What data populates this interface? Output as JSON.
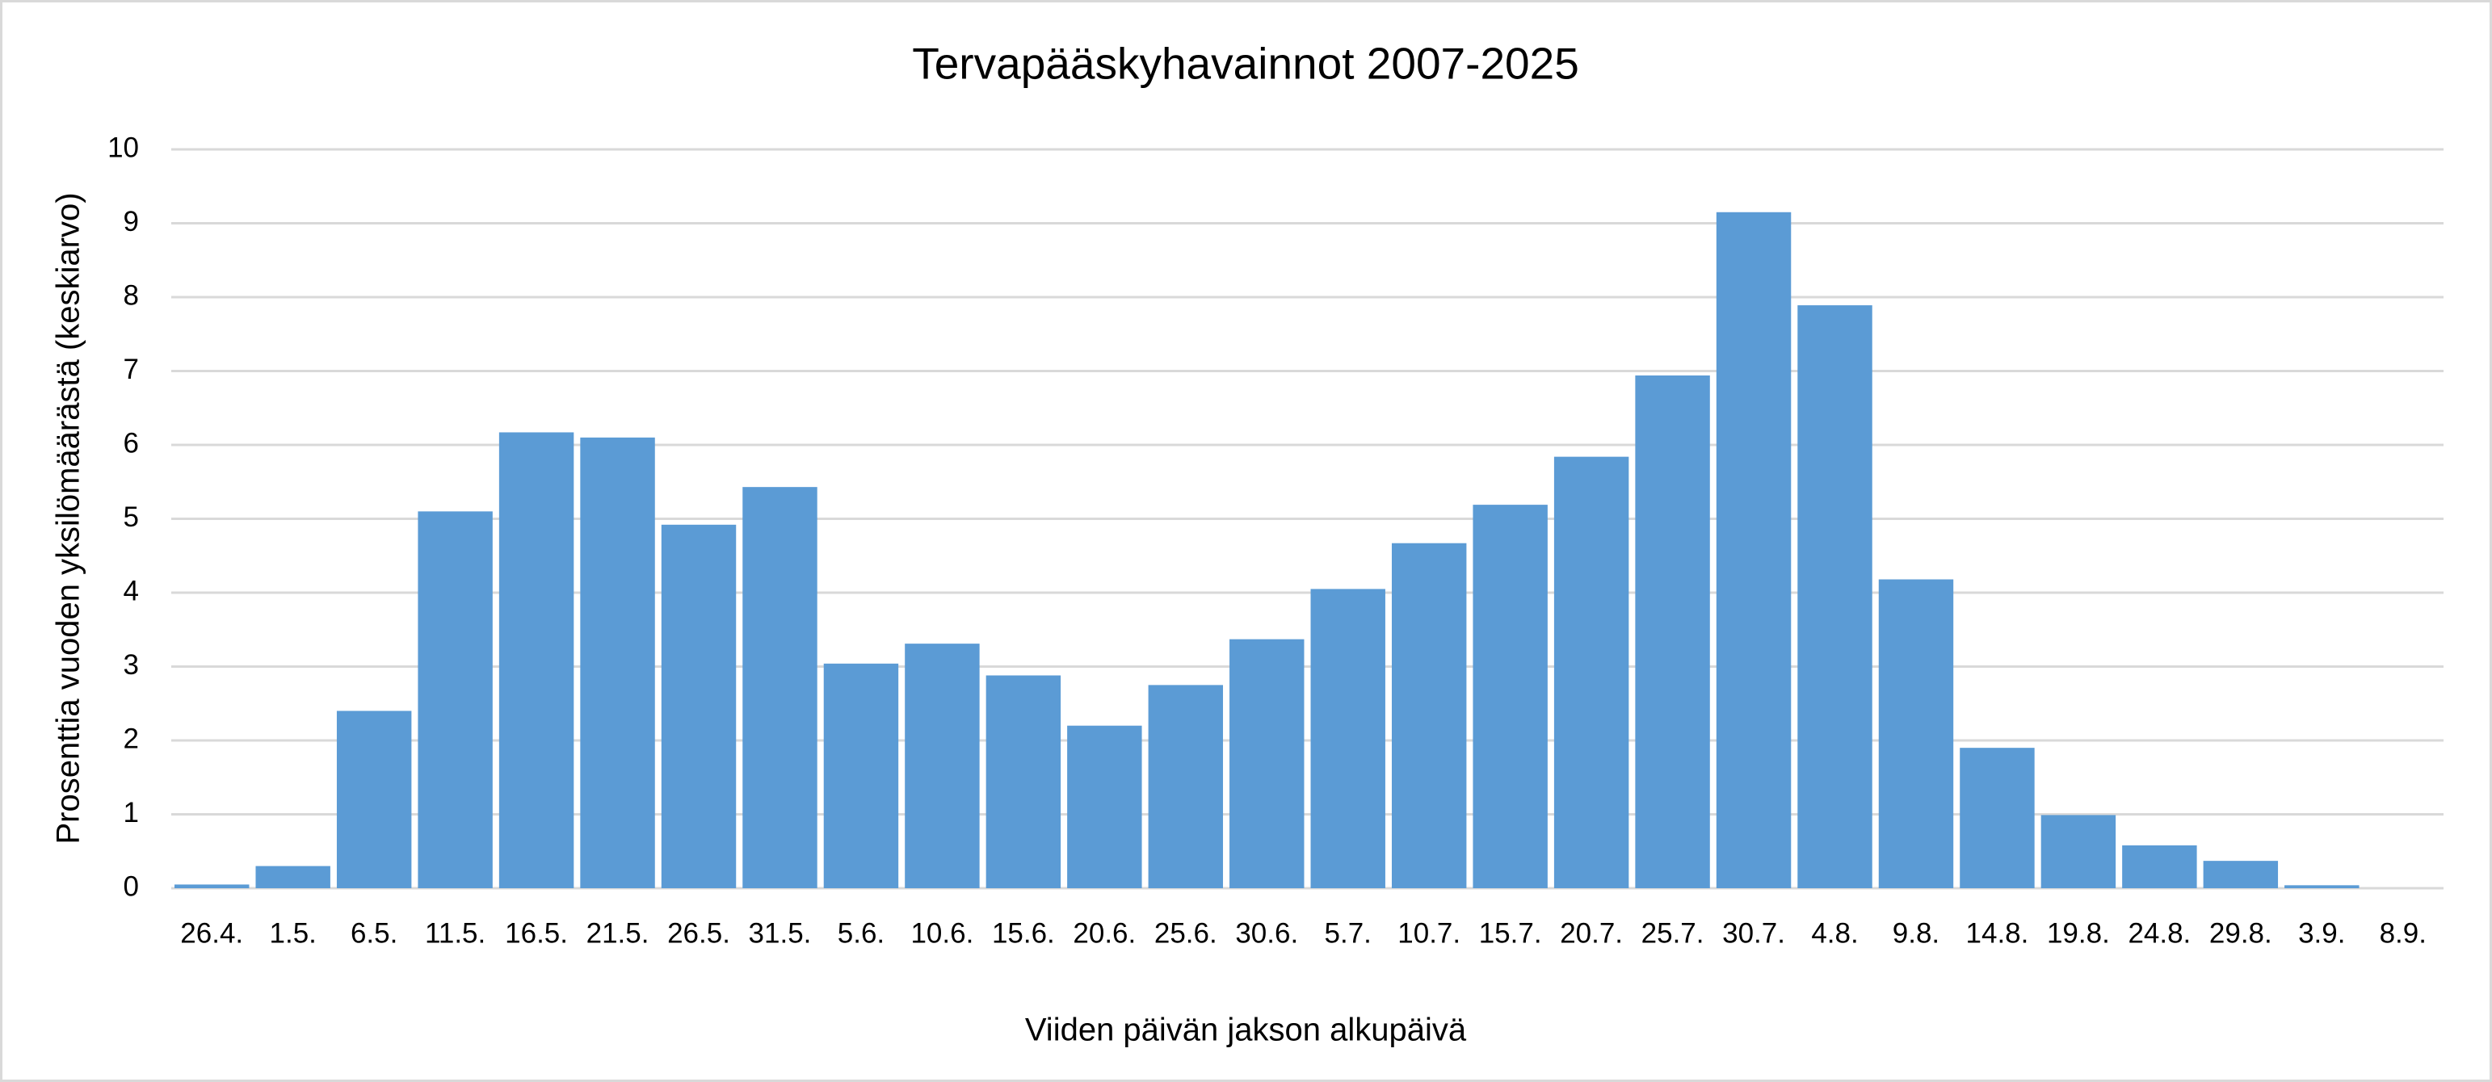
{
  "chart_data": {
    "type": "bar",
    "title": "Tervapääskyhavainnot 2007-2025",
    "x_label": "Viiden päivän jakson alkupäivä",
    "y_label": "Prosenttia vuoden yksilömäärästä (keskiarvo)",
    "categories": [
      "26.4.",
      "1.5.",
      "6.5.",
      "11.5.",
      "16.5.",
      "21.5.",
      "26.5.",
      "31.5.",
      "5.6.",
      "10.6.",
      "15.6.",
      "20.6.",
      "25.6.",
      "30.6.",
      "5.7.",
      "10.7.",
      "15.7.",
      "20.7.",
      "25.7.",
      "30.7.",
      "4.8.",
      "9.8.",
      "14.8.",
      "19.8.",
      "24.8.",
      "29.8.",
      "3.9.",
      "8.9."
    ],
    "values": [
      0.05,
      0.3,
      2.4,
      5.1,
      6.17,
      6.1,
      4.92,
      5.43,
      3.04,
      3.31,
      2.88,
      2.2,
      2.75,
      3.37,
      4.05,
      4.67,
      5.19,
      5.84,
      6.94,
      9.15,
      7.89,
      4.18,
      1.9,
      0.99,
      0.58,
      0.37,
      0.04,
      0
    ],
    "color": "#5b9bd5",
    "ylim": [
      0,
      10
    ],
    "yticks": [
      0,
      1,
      2,
      3,
      4,
      5,
      6,
      7,
      8,
      9,
      10
    ],
    "grid": true
  }
}
